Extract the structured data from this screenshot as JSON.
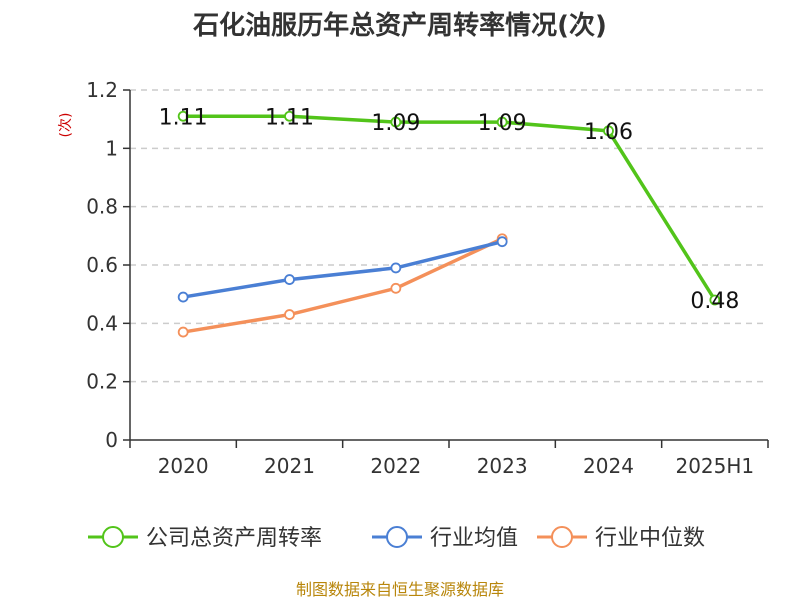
{
  "chart_data": {
    "type": "line",
    "title": "石化油服历年总资产周转率情况(次)",
    "ylabel": "(次)",
    "xlabel": "",
    "categories": [
      "2020",
      "2021",
      "2022",
      "2023",
      "2024",
      "2025H1"
    ],
    "ylim": [
      0,
      1.2
    ],
    "yticks": [
      "0",
      "0.2",
      "0.4",
      "0.6",
      "0.8",
      "1",
      "1.2"
    ],
    "grid": true,
    "legend_position": "bottom",
    "series": [
      {
        "name": "公司总资产周转率",
        "color": "#52c41a",
        "values": [
          1.11,
          1.11,
          1.09,
          1.09,
          1.06,
          0.48
        ],
        "labels": [
          "1.11",
          "1.11",
          "1.09",
          "1.09",
          "1.06",
          "0.48"
        ]
      },
      {
        "name": "行业均值",
        "color": "#4a7fd4",
        "values": [
          0.49,
          0.55,
          0.59,
          0.68,
          null,
          null
        ]
      },
      {
        "name": "行业中位数",
        "color": "#f4905a",
        "values": [
          0.37,
          0.43,
          0.52,
          0.69,
          null,
          null
        ]
      }
    ]
  },
  "source": "制图数据来自恒生聚源数据库"
}
